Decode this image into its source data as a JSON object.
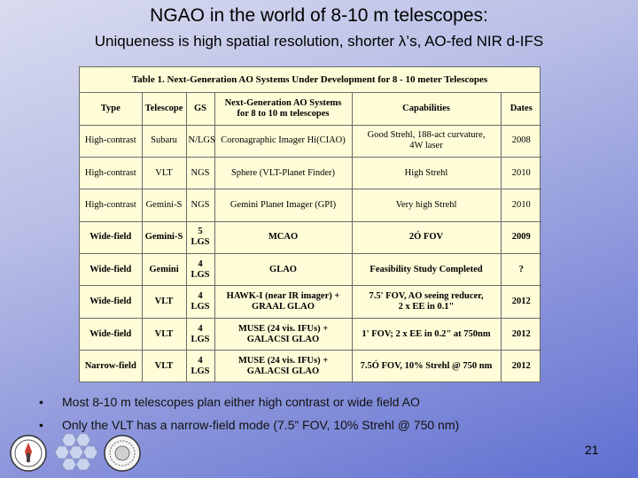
{
  "slide": {
    "title": "NGAO in the world of 8-10 m telescopes:",
    "subtitle": "Uniqueness is high spatial resolution, shorter λ’s, AO-fed NIR d-IFS",
    "page_number": "21"
  },
  "table": {
    "caption": "Table 1.  Next-Generation AO Systems Under Development for 8 - 10 meter Telescopes",
    "headers": {
      "type": "Type",
      "telescope": "Telescope",
      "gs": "GS",
      "system_line1": "Next-Generation  AO Systems",
      "system_line2": "for 8 to 10 m telescopes",
      "capabilities": "Capabilities",
      "dates": "Dates"
    },
    "rows": [
      {
        "type": "High-contrast",
        "telescope": "Subaru",
        "gs": "N/LGS",
        "system": "Coronagraphic Imager Hi(CIAO)",
        "cap1": "Good Strehl, 188-act curvature,",
        "cap2": "4W laser",
        "date": "2008"
      },
      {
        "type": "High-contrast",
        "telescope": "VLT",
        "gs": "NGS",
        "system": "Sphere (VLT-Planet Finder)",
        "cap1": "High Strehl",
        "date": "2010"
      },
      {
        "type": "High-contrast",
        "telescope": "Gemini-S",
        "gs": "NGS",
        "system": "Gemini Planet Imager (GPI)",
        "cap1": "Very high Strehl",
        "date": "2010"
      },
      {
        "type": "Wide-field",
        "telescope": "Gemini-S",
        "gs": "5 LGS",
        "system": "MCAO",
        "cap1": "2Ó FOV",
        "date": "2009"
      },
      {
        "type": "Wide-field",
        "telescope": "Gemini",
        "gs": "4 LGS",
        "system": "GLAO",
        "cap1": "Feasibility Study Completed",
        "date": "?"
      },
      {
        "type": "Wide-field",
        "telescope": "VLT",
        "gs": "4 LGS",
        "system": "HAWK-I (near IR imager) +",
        "system2": "GRAAL GLAO",
        "cap1": "7.5' FOV, AO seeing reducer,",
        "cap2": "2 x EE in 0.1\"",
        "date": "2012"
      },
      {
        "type": "Wide-field",
        "telescope": "VLT",
        "gs": "4 LGS",
        "system": "MUSE (24 vis. IFUs) +",
        "system2": "GALACSI GLAO",
        "cap1": "1' FOV; 2 x EE in 0.2\" at 750nm",
        "date": "2012"
      },
      {
        "type": "Narrow-field",
        "telescope": "VLT",
        "gs": "4 LGS",
        "system": "MUSE (24 vis. IFUs) +",
        "system2": "GALACSI GLAO",
        "cap1": "7.5Ó FOV, 10% Strehl @ 750 nm",
        "date": "2012"
      }
    ]
  },
  "bullets": [
    {
      "mark": "•",
      "text": "Most 8-10 m telescopes plan either high contrast or wide field AO"
    },
    {
      "mark": "•",
      "text": "Only the VLT has a narrow-field mode (7.5” FOV, 10% Strehl @ 750 nm)"
    }
  ],
  "logos": [
    "university-seal-icon",
    "telescope-mirror-icon",
    "institution-seal-icon"
  ]
}
